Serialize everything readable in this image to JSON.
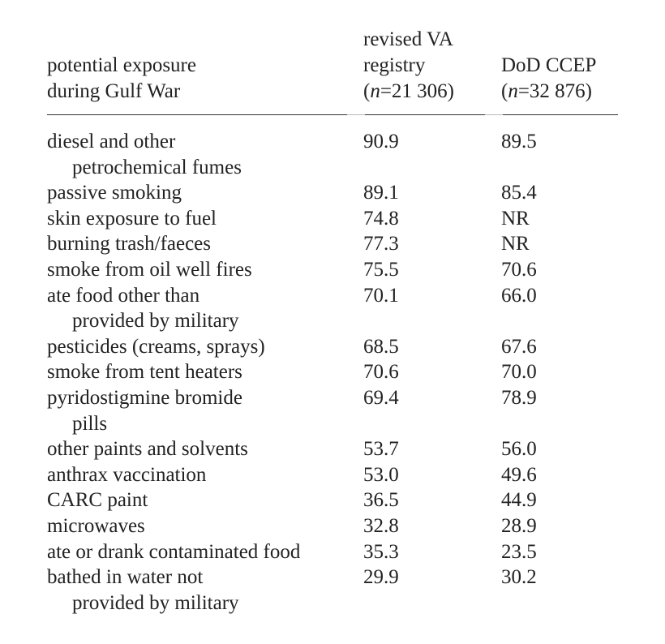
{
  "table": {
    "header": {
      "label_lines": [
        "potential exposure",
        "during Gulf War"
      ],
      "va": {
        "lines": [
          "revised VA",
          "registry"
        ],
        "n_prefix": "(",
        "n_symbol": "n",
        "n_value": "=21 306)"
      },
      "dod": {
        "lines": [
          "DoD CCEP"
        ],
        "n_prefix": "(",
        "n_symbol": "n",
        "n_value": "=32 876)"
      }
    },
    "rows": [
      {
        "label": "diesel and other",
        "label_cont": "petrochemical fumes",
        "va": "90.9",
        "dod": "89.5"
      },
      {
        "label": "passive smoking",
        "va": "89.1",
        "dod": "85.4"
      },
      {
        "label": "skin exposure to fuel",
        "va": "74.8",
        "dod": "NR"
      },
      {
        "label": "burning trash/faeces",
        "va": "77.3",
        "dod": "NR"
      },
      {
        "label": "smoke from oil well fires",
        "va": "75.5",
        "dod": "70.6"
      },
      {
        "label": "ate food other than",
        "label_cont": "provided by military",
        "va": "70.1",
        "dod": "66.0"
      },
      {
        "label": "pesticides (creams, sprays)",
        "va": "68.5",
        "dod": "67.6"
      },
      {
        "label": "smoke from tent heaters",
        "va": "70.6",
        "dod": "70.0"
      },
      {
        "label": "pyridostigmine bromide",
        "label_cont": "pills",
        "va": "69.4",
        "dod": "78.9"
      },
      {
        "label": "other paints and solvents",
        "va": "53.7",
        "dod": "56.0"
      },
      {
        "label": "anthrax vaccination",
        "va": "53.0",
        "dod": "49.6"
      },
      {
        "label": "CARC paint",
        "va": "36.5",
        "dod": "44.9"
      },
      {
        "label": "microwaves",
        "va": "32.8",
        "dod": "28.9"
      },
      {
        "label": "ate or drank contaminated food",
        "va": "35.3",
        "dod": "23.5"
      },
      {
        "label": "bathed in water not",
        "label_cont": "provided by military",
        "va": "29.9",
        "dod": "30.2"
      }
    ]
  }
}
